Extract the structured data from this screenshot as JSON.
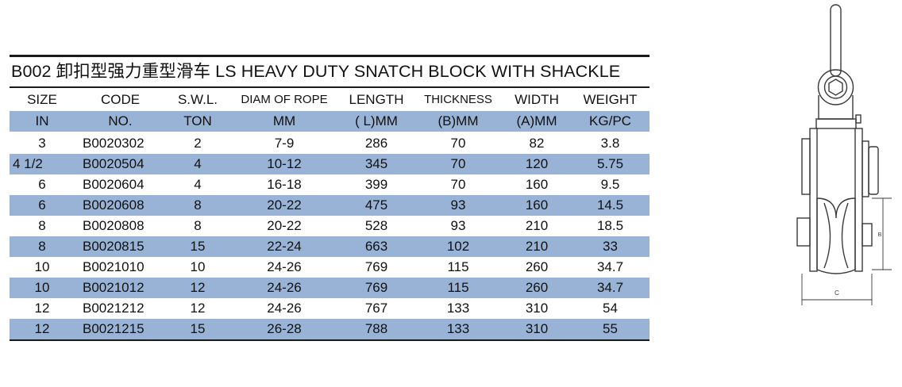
{
  "title": "B002 卸扣型强力重型滑车 LS HEAVY DUTY SNATCH BLOCK WITH SHACKLE",
  "headers": [
    "SIZE",
    "CODE",
    "S.W.L.",
    "DIAM OF ROPE",
    "LENGTH",
    "THICKNESS",
    "WIDTH",
    "WEIGHT"
  ],
  "units": [
    "IN",
    "NO.",
    "TON",
    "MM",
    "( L)MM",
    "(B)MM",
    "(A)MM",
    "KG/PC"
  ],
  "rows": [
    [
      "3",
      "B0020302",
      "2",
      "7-9",
      "286",
      "70",
      "82",
      "3.8"
    ],
    [
      "4  1/2",
      "B0020504",
      "4",
      "10-12",
      "345",
      "70",
      "120",
      "5.75"
    ],
    [
      "6",
      "B0020604",
      "4",
      "16-18",
      "399",
      "70",
      "160",
      "9.5"
    ],
    [
      "6",
      "B0020608",
      "8",
      "20-22",
      "475",
      "93",
      "160",
      "14.5"
    ],
    [
      "8",
      "B0020808",
      "8",
      "20-22",
      "528",
      "93",
      "210",
      "18.5"
    ],
    [
      "8",
      "B0020815",
      "15",
      "22-24",
      "663",
      "102",
      "210",
      "33"
    ],
    [
      "10",
      "B0021010",
      "10",
      "24-26",
      "769",
      "115",
      "260",
      "34.7"
    ],
    [
      "10",
      "B0021012",
      "12",
      "24-26",
      "769",
      "115",
      "260",
      "34.7"
    ],
    [
      "12",
      "B0021212",
      "12",
      "24-26",
      "767",
      "133",
      "310",
      "54"
    ],
    [
      "12",
      "B0021215",
      "15",
      "26-28",
      "788",
      "133",
      "310",
      "55"
    ]
  ],
  "drawing": {
    "dim_c_label": "C",
    "dim_b_label": "B"
  },
  "colors": {
    "shade": "#98b3d5",
    "rule": "#1a1a1a",
    "line": "#3a3a3a"
  }
}
